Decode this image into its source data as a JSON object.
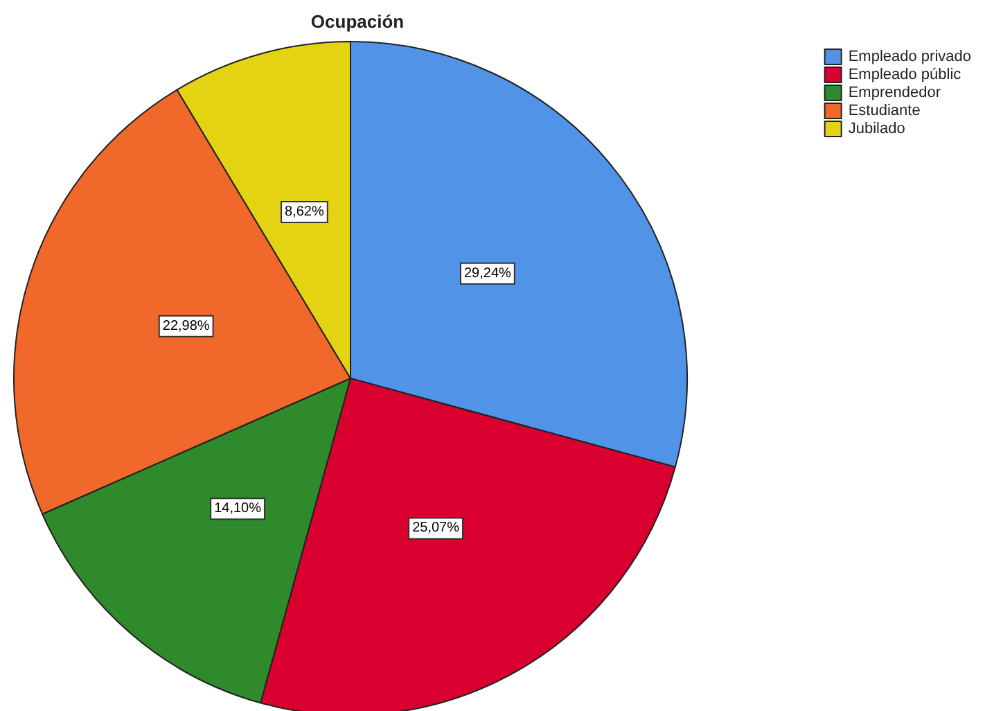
{
  "chart_data": {
    "type": "pie",
    "title": "Ocupación",
    "categories": [
      "Empleado privado",
      "Empleado públic",
      "Emprendedor",
      "Estudiante",
      "Jubilado"
    ],
    "values": [
      29.24,
      25.07,
      14.1,
      22.98,
      8.62
    ],
    "value_labels": [
      "29,24%",
      "25,07%",
      "14,10%",
      "22,98%",
      "8,62%"
    ],
    "colors": [
      "#5193e6",
      "#d90030",
      "#2e8a2a",
      "#f0682a",
      "#e3d312"
    ],
    "legend": "top right"
  }
}
